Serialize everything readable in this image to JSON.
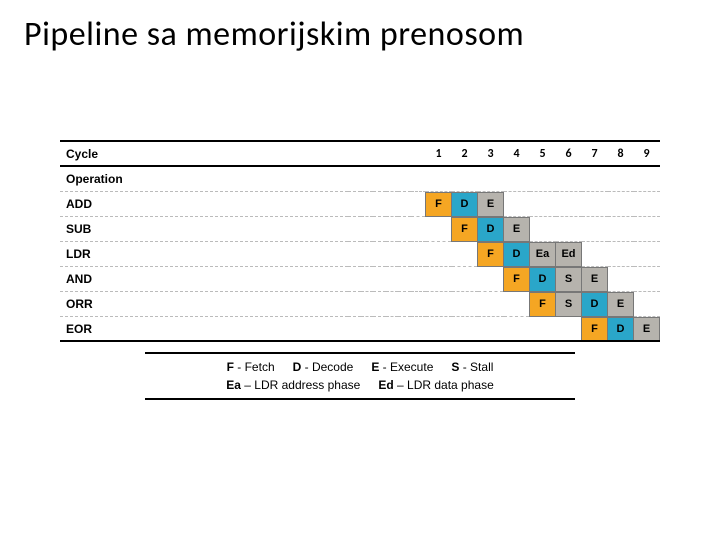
{
  "title": "Pipeline sa memorijskim prenosom",
  "colors": {
    "F": "#f5a623",
    "D": "#2aa6c9",
    "E": "#b6b3ad",
    "S": "#b6b3ad",
    "Ea": "#b6b3ad",
    "Ed": "#b6b3ad",
    "border": "#777777",
    "text": "#000000"
  },
  "header": {
    "cycle_label": "Cycle",
    "operation_label": "Operation",
    "cycles": [
      "1",
      "2",
      "3",
      "4",
      "5",
      "6",
      "7",
      "8",
      "9"
    ]
  },
  "pre_cols": 6,
  "rows": [
    {
      "label": "ADD",
      "start": 0,
      "stages": [
        "F",
        "D",
        "E"
      ]
    },
    {
      "label": "SUB",
      "start": 1,
      "stages": [
        "F",
        "D",
        "E"
      ]
    },
    {
      "label": "LDR",
      "start": 2,
      "stages": [
        "F",
        "D",
        "Ea",
        "Ed"
      ]
    },
    {
      "label": "AND",
      "start": 3,
      "stages": [
        "F",
        "D",
        "S",
        "E"
      ]
    },
    {
      "label": "ORR",
      "start": 4,
      "stages": [
        "F",
        "S",
        "D",
        "E"
      ]
    },
    {
      "label": "EOR",
      "start": 6,
      "stages": [
        "F",
        "D",
        "E"
      ]
    }
  ],
  "legend": [
    [
      {
        "code": "F",
        "desc": "Fetch"
      },
      {
        "code": "D",
        "desc": "Decode"
      },
      {
        "code": "E",
        "desc": "Execute"
      },
      {
        "code": "S",
        "desc": "Stall"
      }
    ],
    [
      {
        "code": "Ea",
        "desc": "LDR address phase"
      },
      {
        "code": "Ed",
        "desc": "LDR data phase"
      }
    ]
  ]
}
